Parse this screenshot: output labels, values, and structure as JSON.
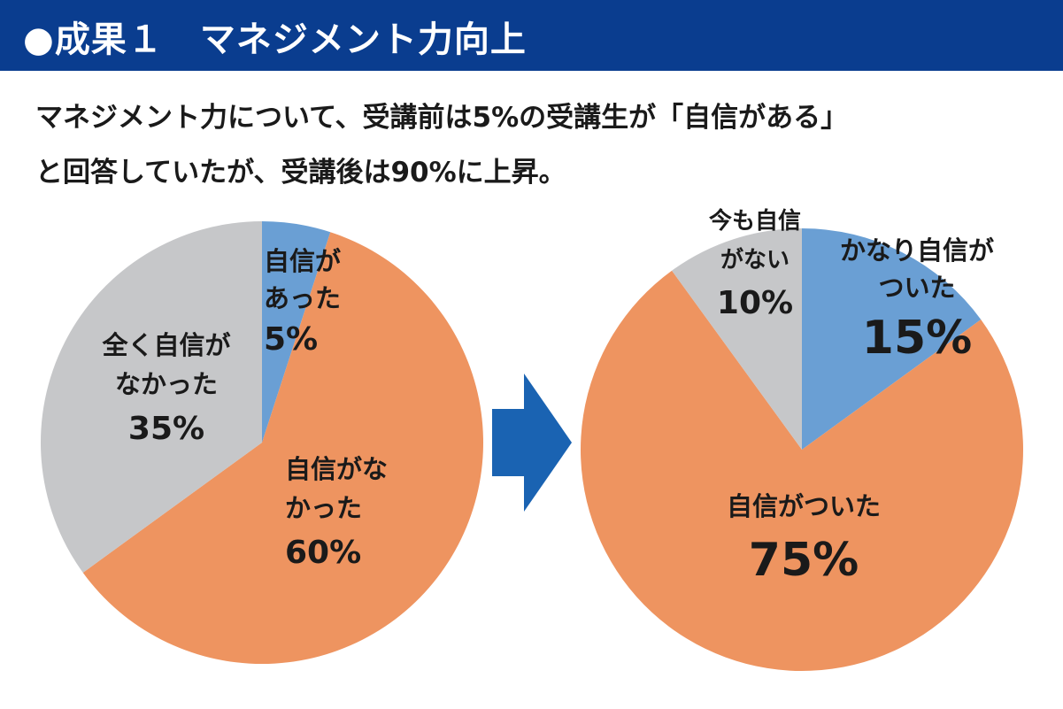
{
  "header": {
    "title": "●成果１　マネジメント力向上"
  },
  "summary": {
    "line1": "マネジメント力について、受講前は5%の受講生が「自信がある」",
    "line2": "と回答していたが、受講後は90%に上昇。"
  },
  "colors": {
    "banner": "#0a3d8f",
    "blue": "#6a9fd4",
    "orange": "#ee9460",
    "gray": "#c6c7c9",
    "arrow": "#1a63b2"
  },
  "arrow_icon": "right-arrow-icon",
  "chart_data": [
    {
      "type": "pie",
      "slices": [
        {
          "label_lines": [
            "自信が",
            "あった"
          ],
          "value": 5,
          "value_label": "5%",
          "color": "#6a9fd4"
        },
        {
          "label_lines": [
            "自信がな",
            "かった"
          ],
          "value": 60,
          "value_label": "60%",
          "color": "#ee9460"
        },
        {
          "label_lines": [
            "全く自信が",
            "なかった"
          ],
          "value": 35,
          "value_label": "35%",
          "color": "#c6c7c9"
        }
      ]
    },
    {
      "type": "pie",
      "slices": [
        {
          "label_lines": [
            "かなり自信が",
            "ついた"
          ],
          "value": 15,
          "value_label": "15%",
          "color": "#6a9fd4"
        },
        {
          "label_lines": [
            "自信がついた"
          ],
          "value": 75,
          "value_label": "75%",
          "color": "#ee9460"
        },
        {
          "label_lines": [
            "今も自信",
            "がない"
          ],
          "value": 10,
          "value_label": "10%",
          "color": "#c6c7c9"
        }
      ]
    }
  ]
}
